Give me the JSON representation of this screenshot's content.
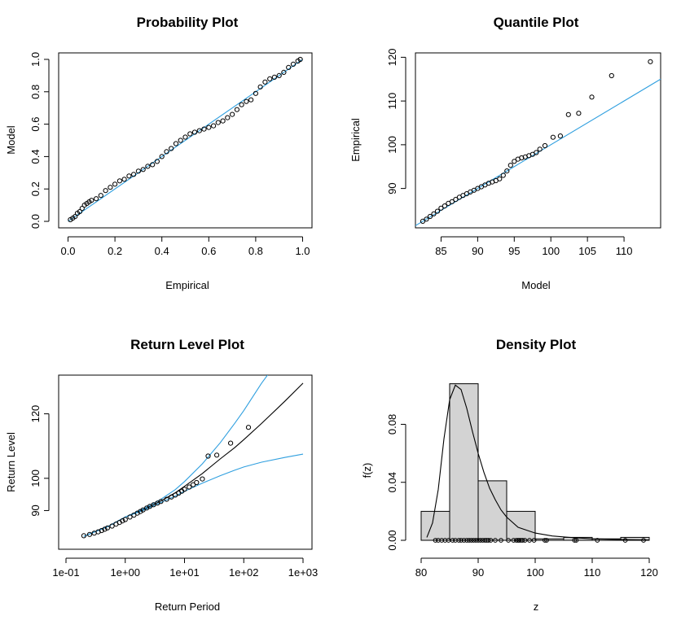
{
  "chart_data": [
    {
      "type": "scatter",
      "title": "Probability Plot",
      "xlabel": "Empirical",
      "ylabel": "Model",
      "xlim": [
        -0.04,
        1.04
      ],
      "ylim": [
        -0.04,
        1.04
      ],
      "x_ticks": [
        "0.0",
        "0.2",
        "0.4",
        "0.6",
        "0.8",
        "1.0"
      ],
      "y_ticks": [
        "0.0",
        "0.2",
        "0.4",
        "0.6",
        "0.8",
        "1.0"
      ],
      "reference_line": {
        "from": [
          0,
          0
        ],
        "to": [
          1,
          1
        ],
        "color": "#2f9fdf"
      },
      "points": {
        "empirical": [
          0.01,
          0.02,
          0.03,
          0.04,
          0.05,
          0.06,
          0.07,
          0.08,
          0.09,
          0.1,
          0.12,
          0.14,
          0.16,
          0.18,
          0.2,
          0.22,
          0.24,
          0.26,
          0.28,
          0.3,
          0.32,
          0.34,
          0.36,
          0.38,
          0.4,
          0.42,
          0.44,
          0.46,
          0.48,
          0.5,
          0.52,
          0.54,
          0.56,
          0.58,
          0.6,
          0.62,
          0.64,
          0.66,
          0.68,
          0.7,
          0.72,
          0.74,
          0.76,
          0.78,
          0.8,
          0.82,
          0.84,
          0.86,
          0.88,
          0.9,
          0.92,
          0.94,
          0.96,
          0.98,
          0.99
        ],
        "model": [
          0.01,
          0.02,
          0.03,
          0.05,
          0.06,
          0.08,
          0.1,
          0.11,
          0.12,
          0.13,
          0.14,
          0.16,
          0.19,
          0.21,
          0.23,
          0.25,
          0.26,
          0.28,
          0.29,
          0.31,
          0.32,
          0.34,
          0.35,
          0.37,
          0.4,
          0.43,
          0.45,
          0.48,
          0.5,
          0.52,
          0.54,
          0.55,
          0.56,
          0.57,
          0.58,
          0.59,
          0.61,
          0.62,
          0.64,
          0.66,
          0.69,
          0.72,
          0.74,
          0.75,
          0.79,
          0.83,
          0.86,
          0.88,
          0.89,
          0.9,
          0.92,
          0.95,
          0.97,
          0.99,
          1.0
        ]
      }
    },
    {
      "type": "scatter",
      "title": "Quantile Plot",
      "xlabel": "Model",
      "ylabel": "Empirical",
      "xlim": [
        81.5,
        115
      ],
      "ylim": [
        81,
        121
      ],
      "x_ticks": [
        "85",
        "90",
        "95",
        "100",
        "105",
        "110"
      ],
      "y_ticks": [
        "90",
        "100",
        "110",
        "120"
      ],
      "reference_line": {
        "from": [
          81.5,
          81.5
        ],
        "to": [
          115,
          115
        ],
        "color": "#2f9fdf"
      },
      "points": {
        "model": [
          82.5,
          83.0,
          83.5,
          84.0,
          84.5,
          85.0,
          85.5,
          86.0,
          86.5,
          87.0,
          87.5,
          88.0,
          88.5,
          89.0,
          89.5,
          90.0,
          90.5,
          91.0,
          91.5,
          92.0,
          92.5,
          93.0,
          93.5,
          94.0,
          94.5,
          95.0,
          95.5,
          96.0,
          96.5,
          97.0,
          97.5,
          98.0,
          98.5,
          99.2,
          100.3,
          101.3,
          102.4,
          103.8,
          105.6,
          108.3,
          113.6
        ],
        "empirical": [
          82.5,
          83.0,
          83.6,
          84.2,
          84.8,
          85.5,
          86.0,
          86.6,
          87.0,
          87.5,
          88.0,
          88.4,
          88.8,
          89.2,
          89.6,
          90.0,
          90.4,
          90.8,
          91.2,
          91.5,
          91.8,
          92.2,
          93.0,
          94.0,
          95.3,
          96.2,
          96.7,
          97.0,
          97.2,
          97.5,
          97.8,
          98.2,
          99.0,
          99.8,
          101.7,
          102.0,
          106.9,
          107.2,
          110.9,
          115.8,
          119.0
        ]
      }
    },
    {
      "type": "line",
      "title": "Return Level Plot",
      "xlabel": "Return Period",
      "ylabel": "Return Level",
      "x_scale": "log",
      "xlim": [
        0.1,
        1000
      ],
      "ylim": [
        78,
        132
      ],
      "x_ticks": [
        "1e-01",
        "1e+00",
        "1e+01",
        "1e+02",
        "1e+03"
      ],
      "y_ticks": [
        "90",
        "100",
        "120"
      ],
      "series": [
        {
          "x": [
            0.2,
            0.5,
            1,
            2,
            4,
            7,
            10,
            20,
            40,
            70,
            100,
            200,
            500,
            1000
          ],
          "y": [
            82,
            85,
            88,
            90.2,
            93,
            95.5,
            97.5,
            101.5,
            106,
            109.5,
            112,
            117,
            124,
            129.5
          ],
          "color": "#000000"
        },
        {
          "x": [
            0.2,
            0.5,
            1,
            2,
            4,
            7,
            10,
            20,
            40,
            70,
            100,
            200,
            400
          ],
          "y": [
            82,
            85,
            88,
            90.5,
            93.5,
            96.5,
            99,
            104.5,
            111,
            117,
            121,
            129.5,
            137
          ],
          "color": "#2f9fdf"
        },
        {
          "x": [
            0.2,
            0.5,
            1,
            2,
            4,
            7,
            10,
            20,
            40,
            70,
            100,
            200,
            500,
            1000
          ],
          "y": [
            82,
            85,
            88,
            90,
            92.5,
            94.5,
            96,
            98.5,
            100.8,
            102.5,
            103.5,
            105,
            106.5,
            107.5
          ],
          "color": "#2f9fdf"
        }
      ],
      "points": {
        "x": [
          0.2,
          0.25,
          0.3,
          0.35,
          0.4,
          0.45,
          0.5,
          0.6,
          0.7,
          0.8,
          0.9,
          1.0,
          1.2,
          1.4,
          1.6,
          1.8,
          2.0,
          2.3,
          2.6,
          3.0,
          3.5,
          4.0,
          5,
          6,
          7,
          8,
          9,
          10,
          12,
          14,
          16,
          20,
          25,
          35,
          60,
          120
        ],
        "y": [
          82.2,
          82.6,
          83.0,
          83.4,
          83.8,
          84.2,
          84.6,
          85.2,
          85.8,
          86.3,
          86.8,
          87.2,
          88.0,
          88.6,
          89.2,
          89.7,
          90.2,
          90.8,
          91.3,
          91.8,
          92.3,
          92.8,
          93.5,
          94.2,
          94.8,
          95.4,
          96.0,
          96.6,
          97.3,
          98.0,
          98.7,
          99.8,
          106.9,
          107.2,
          110.9,
          115.8
        ]
      }
    },
    {
      "type": "bar",
      "title": "Density Plot",
      "xlabel": "z",
      "ylabel": "f(z)",
      "xlim": [
        79,
        121
      ],
      "ylim": [
        0,
        0.11
      ],
      "x_ticks": [
        "80",
        "90",
        "100",
        "110",
        "120"
      ],
      "y_ticks": [
        "0.00",
        "0.04",
        "0.08"
      ],
      "histogram": {
        "bins": [
          [
            80,
            85
          ],
          [
            85,
            90
          ],
          [
            90,
            95
          ],
          [
            95,
            100
          ],
          [
            100,
            105
          ],
          [
            105,
            110
          ],
          [
            110,
            115
          ],
          [
            115,
            120
          ]
        ],
        "density": [
          0.02,
          0.108,
          0.041,
          0.02,
          0.001,
          0.002,
          0.001,
          0.002
        ],
        "color": "#d3d3d3"
      },
      "density_curve": {
        "x": [
          81,
          82,
          83,
          84,
          85,
          86,
          87,
          88,
          89,
          90,
          91,
          92,
          93,
          94,
          95,
          97,
          100,
          103,
          106,
          110,
          115,
          120
        ],
        "y": [
          0.002,
          0.012,
          0.035,
          0.07,
          0.097,
          0.107,
          0.104,
          0.091,
          0.075,
          0.06,
          0.047,
          0.036,
          0.028,
          0.021,
          0.016,
          0.009,
          0.005,
          0.003,
          0.002,
          0.001,
          0.0005,
          0.0002
        ]
      },
      "rug_points": [
        82.5,
        83,
        83.6,
        84.2,
        84.8,
        85.5,
        86,
        86.6,
        87,
        87.5,
        88,
        88.4,
        88.8,
        89.2,
        89.6,
        90,
        90.4,
        90.8,
        91.2,
        91.5,
        91.8,
        92.2,
        93,
        94,
        95.3,
        96.2,
        96.7,
        97,
        97.2,
        97.5,
        97.8,
        98.2,
        99,
        99.8,
        101.7,
        102,
        106.9,
        107.2,
        110.9,
        115.8,
        119
      ]
    }
  ]
}
